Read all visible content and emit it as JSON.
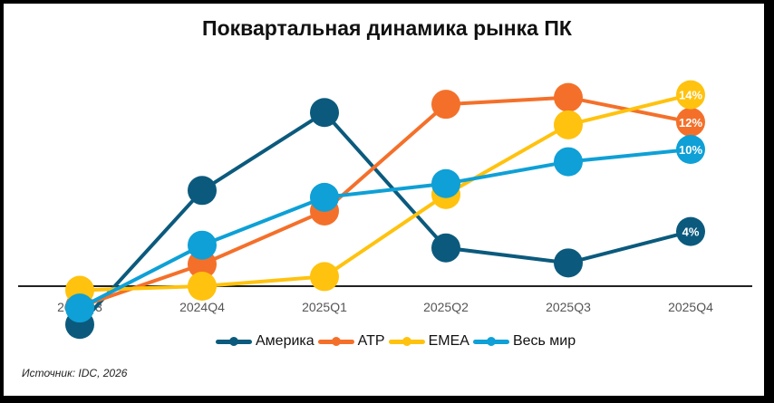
{
  "chart_data": {
    "type": "line",
    "title": "Поквартальная динамика рынка ПК",
    "xlabel": "",
    "ylabel": "",
    "categories": [
      "2024Q3",
      "2024Q4",
      "2025Q1",
      "2025Q2",
      "2025Q3",
      "2025Q4"
    ],
    "series": [
      {
        "name": "Америка",
        "color": "#0b5a7d",
        "values": [
          -2.8,
          7.0,
          12.7,
          2.8,
          1.7,
          4
        ],
        "end_label": "4%"
      },
      {
        "name": "ATP",
        "color": "#f4702a",
        "values": [
          -1.5,
          1.6,
          5.5,
          13.3,
          13.8,
          12
        ],
        "end_label": "12%"
      },
      {
        "name": "EMEA",
        "color": "#ffc20e",
        "values": [
          -0.3,
          0.0,
          0.7,
          6.7,
          11.8,
          14
        ],
        "end_label": "14%"
      },
      {
        "name": "Весь мир",
        "color": "#0ea0d6",
        "values": [
          -1.6,
          3.0,
          6.5,
          7.5,
          9.1,
          10
        ],
        "end_label": "10%"
      }
    ],
    "ylim": [
      -3.5,
      15
    ],
    "grid": false,
    "legend_position": "bottom",
    "annotations": [
      "14%",
      "12%",
      "10%",
      "4%"
    ]
  },
  "title": "Поквартальная динамика рынка ПК",
  "legend": [
    "Америка",
    "ATP",
    "EMEA",
    "Весь мир"
  ],
  "source": "Источник: IDC, 2026"
}
